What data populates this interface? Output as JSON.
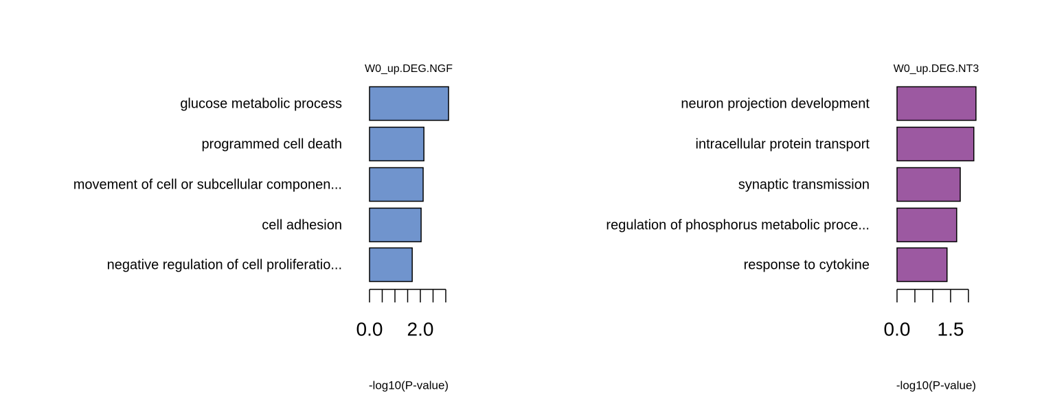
{
  "chart_data": [
    {
      "type": "barh",
      "title": "W0_up.DEG.NGF",
      "xlabel": "-log10(P-value)",
      "color": "#7094cd",
      "categories": [
        "glucose metabolic process",
        "programmed cell death",
        "movement of cell or subcellular componen...",
        "cell adhesion",
        "negative regulation of cell proliferatio..."
      ],
      "values": [
        3.11,
        2.14,
        2.11,
        2.03,
        1.68
      ],
      "xlim": [
        0,
        3
      ],
      "xticks": [
        {
          "value": 0,
          "label": "0.0"
        },
        {
          "value": 0.5,
          "label": null
        },
        {
          "value": 1,
          "label": null
        },
        {
          "value": 1.5,
          "label": null
        },
        {
          "value": 2,
          "label": "2.0"
        },
        {
          "value": 2.5,
          "label": null
        },
        {
          "value": 3,
          "label": null
        }
      ]
    },
    {
      "type": "barh",
      "title": "W0_up.DEG.NT3",
      "xlabel": "-log10(P-value)",
      "color": "#9c59a1",
      "categories": [
        "neuron projection development",
        "intracellular protein transport",
        "synaptic transmission",
        "regulation of phosphorus metabolic proce...",
        "response to cytokine"
      ],
      "values": [
        2.21,
        2.15,
        1.77,
        1.67,
        1.4
      ],
      "xlim": [
        0,
        2
      ],
      "xticks": [
        {
          "value": 0,
          "label": "0.0"
        },
        {
          "value": 0.5,
          "label": null
        },
        {
          "value": 1,
          "label": null
        },
        {
          "value": 1.5,
          "label": "1.5"
        },
        {
          "value": 2,
          "label": null
        }
      ]
    }
  ]
}
